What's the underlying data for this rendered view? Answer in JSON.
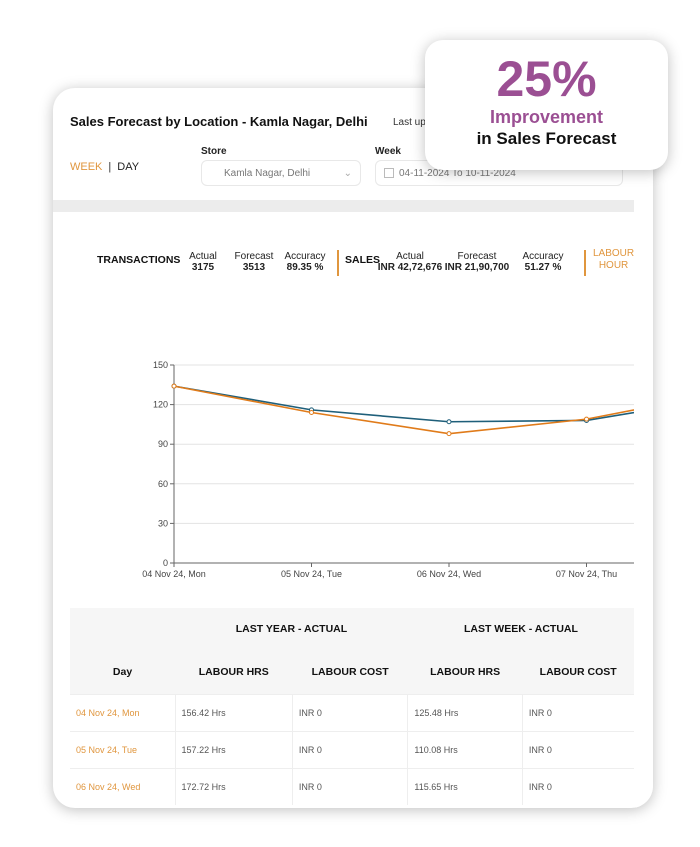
{
  "header": {
    "title": "Sales Forecast by Location - Kamla Nagar, Delhi",
    "last_updated": "Last up"
  },
  "toggle": {
    "week": "WEEK",
    "separator": "|",
    "day": "DAY"
  },
  "store": {
    "label": "Store",
    "value": "Kamla Nagar, Delhi"
  },
  "week": {
    "label": "Week",
    "value": "04-11-2024 To 10-11-2024"
  },
  "kpis": {
    "transactions": {
      "label": "TRANSACTIONS",
      "actual_label": "Actual",
      "actual": "3175",
      "forecast_label": "Forecast",
      "forecast": "3513",
      "accuracy_label": "Accuracy",
      "accuracy": "89.35 %"
    },
    "sales": {
      "label": "SALES",
      "actual_label": "Actual",
      "actual": "INR 42,72,676",
      "forecast_label": "Forecast",
      "forecast": "INR 21,90,700",
      "accuracy_label": "Accuracy",
      "accuracy": "51.27 %"
    },
    "labour": {
      "line1": "LABOUR",
      "line2": "HOUR"
    }
  },
  "colors": {
    "accent": "#e0963e",
    "series_teal": "#1f5f7a",
    "series_orange": "#e07b1a",
    "badge": "#9b4f93"
  },
  "chart_data": {
    "type": "line",
    "categories": [
      "04 Nov 24, Mon",
      "05 Nov 24, Tue",
      "06 Nov 24, Wed",
      "07 Nov 24, Thu"
    ],
    "yticks": [
      "0",
      "30",
      "60",
      "90",
      "120",
      "150"
    ],
    "ylim": [
      0,
      150
    ],
    "grid": true,
    "series": [
      {
        "color": "#1f5f7a",
        "values": [
          134,
          116,
          107,
          108
        ]
      },
      {
        "color": "#e07b1a",
        "values": [
          134,
          114,
          98,
          109
        ]
      }
    ]
  },
  "table": {
    "group_headers": [
      "LAST YEAR - ACTUAL",
      "LAST WEEK - ACTUAL"
    ],
    "columns": [
      "Day",
      "LABOUR HRS",
      "LABOUR COST",
      "LABOUR HRS",
      "LABOUR COST"
    ],
    "rows": [
      [
        "04 Nov 24, Mon",
        "156.42 Hrs",
        "INR 0",
        "125.48 Hrs",
        "INR 0"
      ],
      [
        "05 Nov 24, Tue",
        "157.22 Hrs",
        "INR 0",
        "110.08 Hrs",
        "INR 0"
      ],
      [
        "06 Nov 24, Wed",
        "172.72 Hrs",
        "INR 0",
        "115.65 Hrs",
        "INR 0"
      ]
    ]
  },
  "badge": {
    "value": "25%",
    "line1": "Improvement",
    "line2": "in Sales Forecast"
  }
}
